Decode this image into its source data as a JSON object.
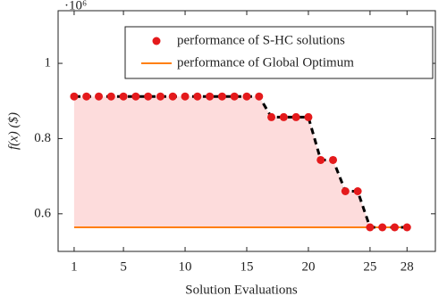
{
  "chart_data": {
    "type": "line",
    "x_label": "Solution Evaluations",
    "y_label": "f(x) ($)",
    "y_multiplier": "·10⁶",
    "x": [
      1,
      2,
      3,
      4,
      5,
      6,
      7,
      8,
      9,
      10,
      11,
      12,
      13,
      14,
      15,
      16,
      17,
      18,
      19,
      20,
      21,
      22,
      23,
      24,
      25,
      26,
      27,
      28
    ],
    "series": [
      {
        "name": "performance of S-HC solutions",
        "color": "#e41a1c",
        "values": [
          0.912,
          0.912,
          0.912,
          0.912,
          0.912,
          0.912,
          0.912,
          0.912,
          0.912,
          0.912,
          0.912,
          0.912,
          0.912,
          0.912,
          0.912,
          0.912,
          0.857,
          0.857,
          0.857,
          0.857,
          0.743,
          0.743,
          0.66,
          0.66,
          0.564,
          0.564,
          0.564,
          0.564
        ]
      },
      {
        "name": "performance of Global Optimum",
        "color": "#ff7f0e",
        "values": [
          0.564,
          0.564,
          0.564,
          0.564,
          0.564,
          0.564,
          0.564,
          0.564,
          0.564,
          0.564,
          0.564,
          0.564,
          0.564,
          0.564,
          0.564,
          0.564,
          0.564,
          0.564,
          0.564,
          0.564,
          0.564,
          0.564,
          0.564,
          0.564,
          0.564,
          0.564,
          0.564,
          0.564
        ]
      }
    ],
    "connector_color": "#000000",
    "fill_color": "#fddcdc",
    "xlim": [
      -0.3,
      30.3
    ],
    "xticks": [
      1,
      5,
      10,
      15,
      20,
      25,
      28
    ],
    "ylim": [
      0.5,
      1.14
    ],
    "yticks": [
      0.6,
      0.8,
      1
    ],
    "legend": "upper right"
  }
}
